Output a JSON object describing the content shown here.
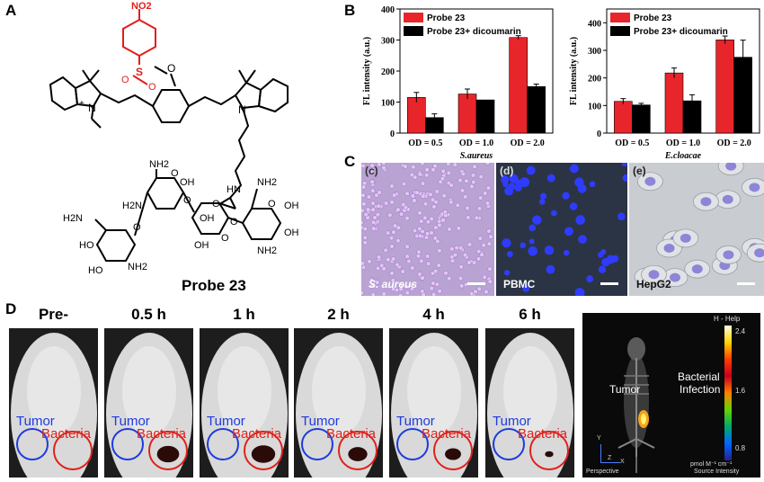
{
  "panels": {
    "a": "A",
    "b": "B",
    "c": "C",
    "d": "D"
  },
  "structure": {
    "nitro_group": "NO2",
    "o_atom": "O",
    "s_atom": "S",
    "so_o1": "O",
    "so_o2": "O",
    "n_plus": "N",
    "plus_sign": "+",
    "n_right": "N",
    "amide_o": "O",
    "amide_nh": "HN",
    "nh2_1": "NH2",
    "oh_1": "OH",
    "h2n_1": "H2N",
    "h2n_2": "H2N",
    "nh2_2": "NH2",
    "oh_2": "OH",
    "ho_1": "HO",
    "ho_2": "HO",
    "nh2_3": "NH2",
    "o_ring1": "O",
    "o_ring2": "O",
    "o_ring3": "O",
    "o_ring4": "O",
    "o_ring5": "O",
    "o_ring6": "O",
    "oh_3": "OH",
    "oh_4": "OH",
    "nh2_4": "NH2",
    "oh_5": "OH",
    "caption": "Probe 23",
    "accent_color": "#e0201a"
  },
  "chart_data": [
    {
      "type": "bar",
      "title": "S.aureus",
      "ylabel": "FL intensity (a.u.)",
      "categories": [
        "OD = 0.5",
        "OD = 1.0",
        "OD = 2.0"
      ],
      "ylim": [
        0,
        400
      ],
      "yticks": [
        0,
        100,
        200,
        300,
        400
      ],
      "series": [
        {
          "name": "Probe 23",
          "color": "#e8252b",
          "values": [
            115,
            126,
            308
          ],
          "errors": [
            16,
            16,
            6
          ]
        },
        {
          "name": "Probe 23+ dicoumarin",
          "color": "#000000",
          "values": [
            50,
            107,
            150
          ],
          "errors": [
            12,
            0,
            8
          ]
        }
      ],
      "legend": "top-left"
    },
    {
      "type": "bar",
      "title": "E.cloacae",
      "ylabel": "FL intensity (a.u.)",
      "categories": [
        "OD = 0.5",
        "OD = 1.0",
        "OD = 2.0"
      ],
      "ylim": [
        0,
        450
      ],
      "yticks": [
        0,
        100,
        200,
        300,
        400
      ],
      "series": [
        {
          "name": "Probe 23",
          "color": "#e8252b",
          "values": [
            115,
            218,
            338
          ],
          "errors": [
            10,
            18,
            14
          ]
        },
        {
          "name": "Probe 23+ dicoumarin",
          "color": "#000000",
          "values": [
            102,
            117,
            275
          ],
          "errors": [
            6,
            22,
            62
          ]
        }
      ],
      "legend": "top-left"
    }
  ],
  "microscopy": [
    {
      "label": "(c)",
      "name": "S. aureus",
      "color": "#c8a8e6"
    },
    {
      "label": "(d)",
      "name": "PBMC",
      "color": "#2a3140"
    },
    {
      "label": "(e)",
      "name": "HepG2",
      "color": "#cfd0d4"
    }
  ],
  "imaging": {
    "timepoints": [
      "Pre-",
      "0.5 h",
      "1 h",
      "2 h",
      "4 h",
      "6 h"
    ],
    "tumor_label": "Tumor",
    "bacteria_label": "Bacteria",
    "tumor_color": "#1f3bdc",
    "bacteria_color": "#e0201a",
    "signal_levels": [
      0,
      0.55,
      0.6,
      0.45,
      0.35,
      0.1
    ],
    "ct_panel": {
      "colorbar_title": "H - Help",
      "colorbar_ticks": [
        "2.4",
        "1.6",
        "0.8"
      ],
      "tumor": "Tumor",
      "bacterial_line1": "Bacterial",
      "bacterial_line2": "Infection",
      "units_line1": "pmol M⁻¹ cm⁻¹",
      "units_line2": "Source Intensity",
      "view": "Perspective",
      "axis_y": "Y",
      "axis_z": "Z",
      "axis_x": "X"
    }
  }
}
